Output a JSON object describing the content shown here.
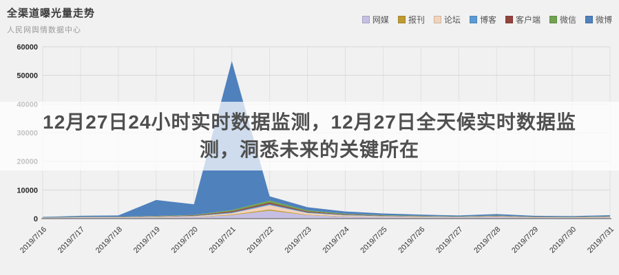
{
  "header": {
    "title": "全渠道曝光量走势",
    "subtitle": "人民网舆情数据中心"
  },
  "overlay": {
    "line1": "12月27日24小时实时数据监测，12月27日全天候实时数据监",
    "line2": "测，洞悉未来的关键所在",
    "full_text": "12月27日24小时实时数据监测，12月27日全天候实时数据监测，洞悉未来的关键所在"
  },
  "chart_data": {
    "type": "area",
    "stacked": true,
    "title": "全渠道曝光量走势",
    "subtitle": "人民网舆情数据中心",
    "xlabel": "",
    "ylabel": "",
    "ylim": [
      0,
      60000
    ],
    "yticks": [
      0,
      10000,
      20000,
      30000,
      40000,
      50000,
      60000
    ],
    "grid": true,
    "legend_position": "top-right",
    "x": [
      "2019/7/16",
      "2019/7/17",
      "2019/7/18",
      "2019/7/19",
      "2019/7/20",
      "2019/7/21",
      "2019/7/22",
      "2019/7/23",
      "2019/7/24",
      "2019/7/25",
      "2019/7/26",
      "2019/7/27",
      "2019/7/28",
      "2019/7/29",
      "2019/7/30",
      "2019/7/31"
    ],
    "series": [
      {
        "name": "网媒",
        "color": "#c6bfe3",
        "values": [
          200,
          300,
          300,
          400,
          500,
          1200,
          2800,
          1200,
          700,
          500,
          400,
          350,
          500,
          300,
          250,
          350
        ]
      },
      {
        "name": "报刊",
        "color": "#bf9a31",
        "values": [
          30,
          40,
          40,
          60,
          80,
          200,
          400,
          150,
          100,
          70,
          60,
          50,
          60,
          40,
          40,
          50
        ]
      },
      {
        "name": "论坛",
        "color": "#f3d3bc",
        "values": [
          80,
          120,
          120,
          180,
          250,
          500,
          1500,
          600,
          350,
          250,
          200,
          150,
          200,
          120,
          120,
          180
        ]
      },
      {
        "name": "博客",
        "color": "#5b9bd5",
        "values": [
          40,
          60,
          60,
          90,
          120,
          300,
          400,
          250,
          150,
          110,
          90,
          70,
          90,
          60,
          60,
          80
        ]
      },
      {
        "name": "客户端",
        "color": "#94433c",
        "values": [
          40,
          60,
          60,
          90,
          150,
          350,
          500,
          300,
          180,
          130,
          100,
          80,
          100,
          70,
          70,
          90
        ]
      },
      {
        "name": "微信",
        "color": "#71a350",
        "values": [
          60,
          90,
          90,
          130,
          200,
          450,
          700,
          400,
          220,
          160,
          130,
          100,
          130,
          90,
          90,
          110
        ]
      },
      {
        "name": "微博",
        "color": "#4f81bd",
        "values": [
          150,
          330,
          430,
          5550,
          3700,
          52000,
          1500,
          1100,
          800,
          580,
          420,
          300,
          520,
          320,
          270,
          340
        ]
      }
    ],
    "colors": {
      "background": "#f1f1f1",
      "gridline": "#d6d6d6",
      "vertical_gridline": "#e0e0e0",
      "axis": "#6e6e6e",
      "tick_label": "#262626",
      "overlay_bg": "rgba(255,255,255,0.72)",
      "overlay_text": "#4f4f4f"
    }
  }
}
